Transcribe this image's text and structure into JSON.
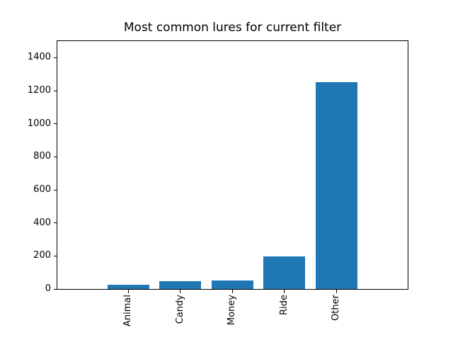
{
  "chart_data": {
    "type": "bar",
    "title": "Most common lures for current filter",
    "categories": [
      "Animal",
      "Candy",
      "Money",
      "Ride",
      "Other"
    ],
    "values": [
      27,
      47,
      51,
      199,
      1253
    ],
    "xlabel": "",
    "ylabel": "",
    "ylim": [
      0,
      1500
    ],
    "yticks": [
      0,
      200,
      400,
      600,
      800,
      1000,
      1200,
      1400
    ],
    "bar_color": "#1f77b4",
    "background_color": "#ffffff",
    "text_color": "#000000",
    "grid": false,
    "legend_position": "none",
    "x_tick_label_rotation_deg": 90
  }
}
